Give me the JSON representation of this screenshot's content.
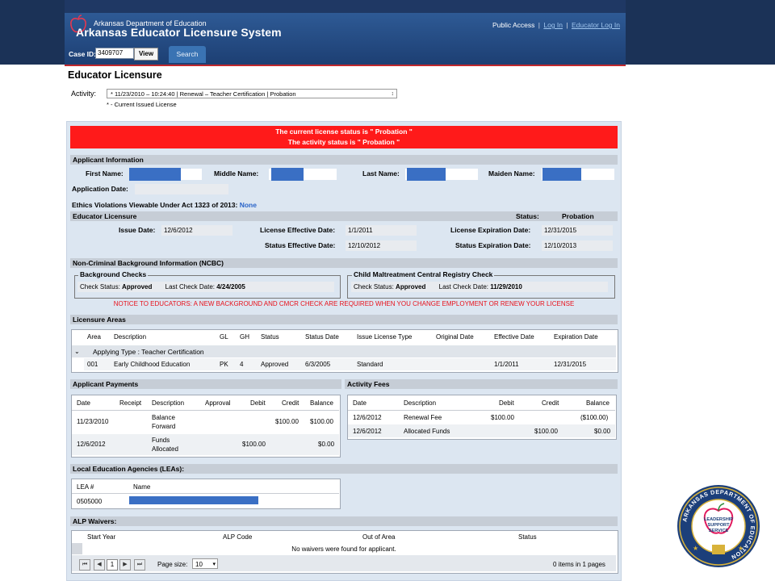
{
  "header": {
    "dept_name": "Arkansas Department of Education",
    "app_title": "Arkansas Educator Licensure System",
    "links": {
      "public_access": "Public Access",
      "log_in": "Log In",
      "educator_log_in": "Educator Log In",
      "separator": "|"
    },
    "case_label": "Case ID:",
    "case_id": "3409707",
    "view_label": "View",
    "search_tab": "Search"
  },
  "page": {
    "title": "Educator Licensure",
    "activity_label": "Activity:",
    "activity_value": "* 11/23/2010 – 10:24:40 | Renewal – Teacher Certification | Probation",
    "activity_note": "* - Current Issued License"
  },
  "banner": {
    "line1": "The current license status is \" Probation \"",
    "line2": "The activity status is \" Probation \""
  },
  "applicant": {
    "section": "Applicant Information",
    "first_name_label": "First Name:",
    "middle_name_label": "Middle Name:",
    "last_name_label": "Last Name:",
    "maiden_name_label": "Maiden Name:",
    "application_date_label": "Application Date:",
    "ethics_label": "Ethics Violations Viewable Under Act 1323 of 2013:",
    "ethics_value": "None"
  },
  "licensure": {
    "section": "Educator Licensure",
    "status_label": "Status:",
    "status_value": "Probation",
    "issue_date_label": "Issue Date:",
    "issue_date": "12/6/2012",
    "effective_label": "License Effective Date:",
    "effective_date": "1/1/2011",
    "expiration_label": "License Expiration Date:",
    "expiration_date": "12/31/2015",
    "status_effective_label": "Status Effective Date:",
    "status_effective_date": "12/10/2012",
    "status_expiration_label": "Status Expiration Date:",
    "status_expiration_date": "12/10/2013"
  },
  "ncbc": {
    "section": "Non-Criminal Background Information (NCBC)",
    "bg_legend": "Background Checks",
    "bg_check_status_label": "Check Status:",
    "bg_check_status": "Approved",
    "bg_last_check_label": "Last Check Date:",
    "bg_last_check": "4/24/2005",
    "cm_legend": "Child Maltreatment Central Registry Check",
    "cm_check_status_label": "Check Status:",
    "cm_check_status": "Approved",
    "cm_last_check_label": "Last Check Date:",
    "cm_last_check": "11/29/2010",
    "notice": "NOTICE TO EDUCATORS: A NEW BACKGROUND AND CMCR CHECK ARE REQUIRED WHEN YOU CHANGE EMPLOYMENT OR RENEW YOUR LICENSE"
  },
  "areas": {
    "section": "Licensure Areas",
    "headers": [
      "Area",
      "Description",
      "GL",
      "GH",
      "Status",
      "Status Date",
      "Issue License Type",
      "Original Date",
      "Effective Date",
      "Expiration Date"
    ],
    "group_label": "Applying Type : Teacher Certification",
    "rows": [
      [
        "001",
        "Early Childhood Education",
        "PK",
        "4",
        "Approved",
        "6/3/2005",
        "Standard",
        "",
        "1/1/2011",
        "12/31/2015"
      ]
    ]
  },
  "payments": {
    "section": "Applicant Payments",
    "headers": [
      "Date",
      "Receipt",
      "Description",
      "Approval",
      "Debit",
      "Credit",
      "Balance"
    ],
    "rows": [
      {
        "date": "11/23/2010",
        "desc1": "Balance",
        "desc2": "Forward",
        "debit": "",
        "credit": "$100.00",
        "balance": "$100.00"
      },
      {
        "date": "12/6/2012",
        "desc1": "Funds",
        "desc2": "Allocated",
        "debit": "$100.00",
        "credit": "",
        "balance": "$0.00"
      }
    ]
  },
  "fees": {
    "section": "Activity Fees",
    "headers": [
      "Date",
      "Description",
      "Debit",
      "Credit",
      "Balance"
    ],
    "rows": [
      [
        "12/6/2012",
        "Renewal Fee",
        "$100.00",
        "",
        "($100.00)"
      ],
      [
        "12/6/2012",
        "Allocated Funds",
        "",
        "$100.00",
        "$0.00"
      ]
    ]
  },
  "lea": {
    "section": "Local Education Agencies (LEAs):",
    "headers": [
      "LEA #",
      "Name"
    ],
    "row_lea": "0505000"
  },
  "alp": {
    "section": "ALP Waivers:",
    "headers": [
      "Start Year",
      "ALP Code",
      "Out of Area",
      "Status"
    ],
    "empty": "No waivers were found for applicant.",
    "page": "1",
    "page_size_label": "Page size:",
    "page_size": "10",
    "items_text": "0 items in 1 pages"
  },
  "seal": {
    "ring_text": "ARKANSAS DEPARTMENT OF EDUCATION",
    "line1": "LEADERSHIP",
    "line2": "SUPPORT",
    "line3": "SERVICE"
  },
  "colors": {
    "banner": "#ff1a1a",
    "header": "#1f3864",
    "notice": "#e8101a"
  }
}
